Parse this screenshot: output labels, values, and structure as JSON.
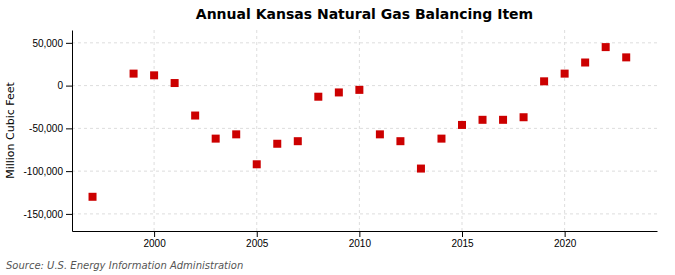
{
  "chart_data": {
    "type": "scatter",
    "title": "Annual Kansas Natural Gas Balancing Item",
    "ylabel": "Million Cubic Feet",
    "source": "Source: U.S. Energy Information Administration",
    "x": [
      1997,
      1999,
      2000,
      2001,
      2002,
      2003,
      2004,
      2005,
      2006,
      2007,
      2008,
      2009,
      2010,
      2011,
      2012,
      2013,
      2014,
      2015,
      2016,
      2017,
      2018,
      2019,
      2020,
      2021,
      2022,
      2023
    ],
    "values": [
      -130000,
      14000,
      12000,
      3000,
      -35000,
      -62000,
      -57000,
      -92000,
      -68000,
      -65000,
      -13000,
      -8000,
      -5000,
      -57000,
      -65000,
      -97000,
      -62000,
      -46000,
      -40000,
      -40000,
      -37000,
      5000,
      14000,
      27000,
      45000,
      33000
    ],
    "color": "#cc0000",
    "marker": "square",
    "xlim": [
      1996,
      2024.5
    ],
    "ylim": [
      -170000,
      65000
    ],
    "xticks": [
      2000,
      2005,
      2010,
      2015,
      2020
    ],
    "yticks": [
      {
        "value": -150000,
        "label": "-150,000"
      },
      {
        "value": -100000,
        "label": "-100,000"
      },
      {
        "value": -50000,
        "label": "-50,000"
      },
      0,
      {
        "value": 50000,
        "label": "50,000"
      }
    ],
    "grid": true
  }
}
